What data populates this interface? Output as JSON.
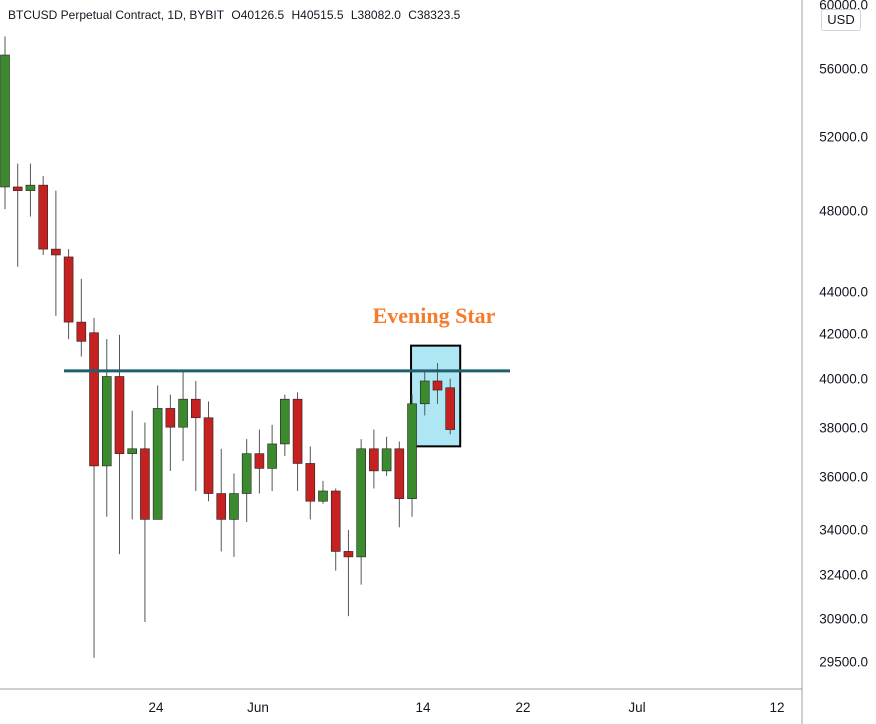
{
  "header": {
    "symbol": "BTCUSD Perpetual Contract, 1D, BYBIT",
    "open": "O40126.5",
    "high": "H40515.5",
    "low": "L38082.0",
    "close": "C38323.5"
  },
  "currency_label": "USD",
  "colors": {
    "up": "#3c8a2e",
    "down": "#c62121",
    "wick": "#555555",
    "resistance": "#1f5f6e",
    "box_fill": "#aee7f3",
    "annotation": "#f57c2b"
  },
  "chart_data": {
    "type": "candlestick",
    "y_scale": "log",
    "ylim": [
      28800,
      61000
    ],
    "x_ticks": [
      "24",
      "Jun",
      "14",
      "22",
      "Jul",
      "12"
    ],
    "y_ticks": [
      "60000.0",
      "56000.0",
      "52000.0",
      "48000.0",
      "44000.0",
      "42000.0",
      "40000.0",
      "38000.0",
      "36000.0",
      "34000.0",
      "32400.0",
      "30900.0",
      "29500.0"
    ],
    "candles": [
      {
        "o": 50000,
        "h": 59000,
        "l": 48800,
        "c": 57800
      },
      {
        "o": 50000,
        "h": 51300,
        "l": 45800,
        "c": 49800
      },
      {
        "o": 49800,
        "h": 51300,
        "l": 48400,
        "c": 50100
      },
      {
        "o": 50100,
        "h": 50600,
        "l": 46400,
        "c": 46700
      },
      {
        "o": 46700,
        "h": 49800,
        "l": 43400,
        "c": 46400
      },
      {
        "o": 46300,
        "h": 46700,
        "l": 42300,
        "c": 43100
      },
      {
        "o": 43100,
        "h": 45200,
        "l": 41500,
        "c": 42200
      },
      {
        "o": 42600,
        "h": 43300,
        "l": 29800,
        "c": 36800
      },
      {
        "o": 36800,
        "h": 42300,
        "l": 34800,
        "c": 40600
      },
      {
        "o": 40600,
        "h": 42500,
        "l": 33400,
        "c": 37300
      },
      {
        "o": 37300,
        "h": 39100,
        "l": 34700,
        "c": 37500
      },
      {
        "o": 37500,
        "h": 38600,
        "l": 31000,
        "c": 34700
      },
      {
        "o": 34700,
        "h": 40200,
        "l": 34700,
        "c": 39200
      },
      {
        "o": 39200,
        "h": 39800,
        "l": 36600,
        "c": 38400
      },
      {
        "o": 38400,
        "h": 40900,
        "l": 37000,
        "c": 39600
      },
      {
        "o": 39600,
        "h": 40400,
        "l": 35800,
        "c": 38800
      },
      {
        "o": 38800,
        "h": 39500,
        "l": 35400,
        "c": 35700
      },
      {
        "o": 35700,
        "h": 37500,
        "l": 33500,
        "c": 34700
      },
      {
        "o": 34700,
        "h": 36500,
        "l": 33300,
        "c": 35700
      },
      {
        "o": 35700,
        "h": 37900,
        "l": 34600,
        "c": 37300
      },
      {
        "o": 37300,
        "h": 38300,
        "l": 35700,
        "c": 36700
      },
      {
        "o": 36700,
        "h": 38500,
        "l": 35800,
        "c": 37700
      },
      {
        "o": 37700,
        "h": 39800,
        "l": 37200,
        "c": 39600
      },
      {
        "o": 39600,
        "h": 39900,
        "l": 35800,
        "c": 36900
      },
      {
        "o": 36900,
        "h": 37600,
        "l": 34700,
        "c": 35400
      },
      {
        "o": 35400,
        "h": 36200,
        "l": 35300,
        "c": 35800
      },
      {
        "o": 35800,
        "h": 35900,
        "l": 32800,
        "c": 33500
      },
      {
        "o": 33500,
        "h": 34300,
        "l": 31200,
        "c": 33300
      },
      {
        "o": 33300,
        "h": 37900,
        "l": 32300,
        "c": 37500
      },
      {
        "o": 37500,
        "h": 38300,
        "l": 35900,
        "c": 36600
      },
      {
        "o": 36600,
        "h": 38000,
        "l": 36400,
        "c": 37500
      },
      {
        "o": 37500,
        "h": 37800,
        "l": 34400,
        "c": 35500
      },
      {
        "o": 35500,
        "h": 39800,
        "l": 34800,
        "c": 39400
      },
      {
        "o": 39400,
        "h": 40900,
        "l": 38900,
        "c": 40400
      },
      {
        "o": 40400,
        "h": 41200,
        "l": 39400,
        "c": 40000
      },
      {
        "o": 40100,
        "h": 40500,
        "l": 38100,
        "c": 38300
      }
    ],
    "resistance_level": 40850,
    "annotations": [
      {
        "text": "Evening Star",
        "from_index": 32,
        "to_index": 35,
        "price_top": 42000,
        "price_bottom": 37600
      }
    ]
  }
}
